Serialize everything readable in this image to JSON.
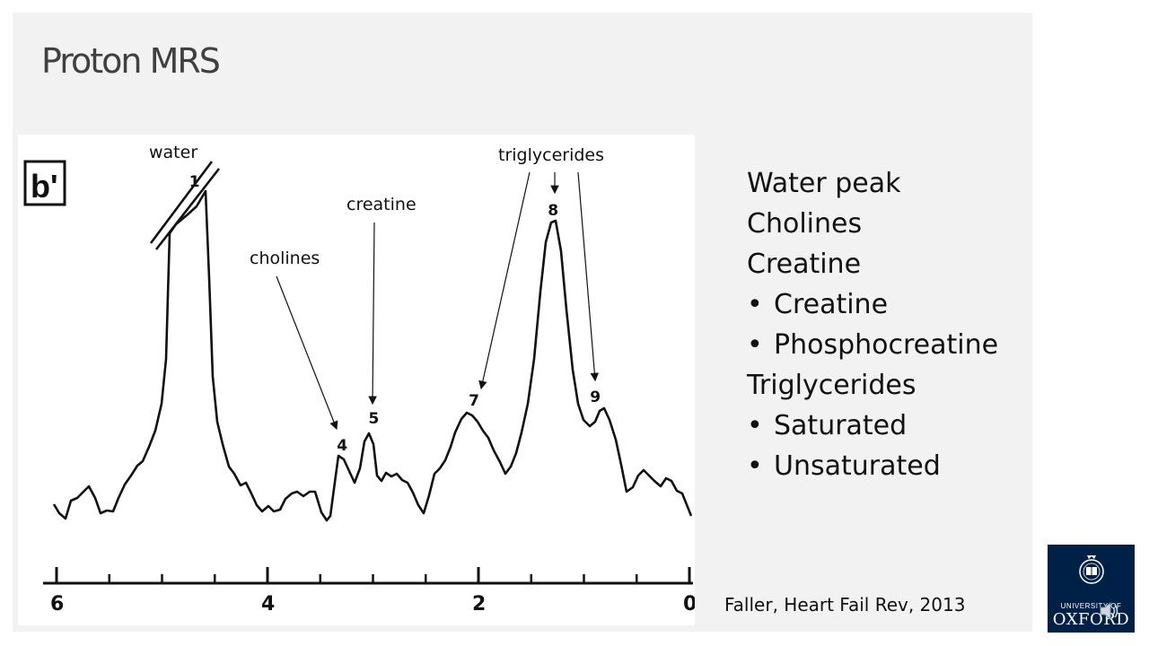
{
  "slide": {
    "title": "Proton MRS",
    "citation": "Faller, Heart Fail Rev, 2013",
    "bullets": [
      {
        "text": "Water peak",
        "level": 0
      },
      {
        "text": "Cholines",
        "level": 0
      },
      {
        "text": "Creatine",
        "level": 0
      },
      {
        "text": "Creatine",
        "level": 1
      },
      {
        "text": "Phosphocreatine",
        "level": 1
      },
      {
        "text": "Triglycerides",
        "level": 0
      },
      {
        "text": "Saturated",
        "level": 1
      },
      {
        "text": "Unsaturated",
        "level": 1
      }
    ]
  },
  "figure": {
    "panel_label": "b'",
    "annotations": {
      "water": "water",
      "cholines": "cholines",
      "creatine": "creatine",
      "triglycerides": "triglycerides"
    }
  },
  "chart_data": {
    "type": "line",
    "x_axis": {
      "tick_labels": [
        "6",
        "4",
        "2",
        "0"
      ],
      "xlim": [
        6,
        0
      ],
      "reversed": true
    },
    "peaks": [
      {
        "label": "1",
        "ppm": 4.7
      },
      {
        "label": "4",
        "ppm": 3.3
      },
      {
        "label": "5",
        "ppm": 3.0
      },
      {
        "label": "7",
        "ppm": 2.05
      },
      {
        "label": "8",
        "ppm": 1.3
      },
      {
        "label": "9",
        "ppm": 0.9
      }
    ],
    "grid": false,
    "legend": "none"
  },
  "logo": {
    "line1": "UNIVERSITY OF",
    "line2": "OXFORD"
  },
  "colors": {
    "slide_background": "#f2f2f2",
    "title": "#404040",
    "logo_background": "#002147"
  },
  "icons": {
    "crest": "oxford-crest-icon",
    "speaker": "speaker-icon"
  }
}
